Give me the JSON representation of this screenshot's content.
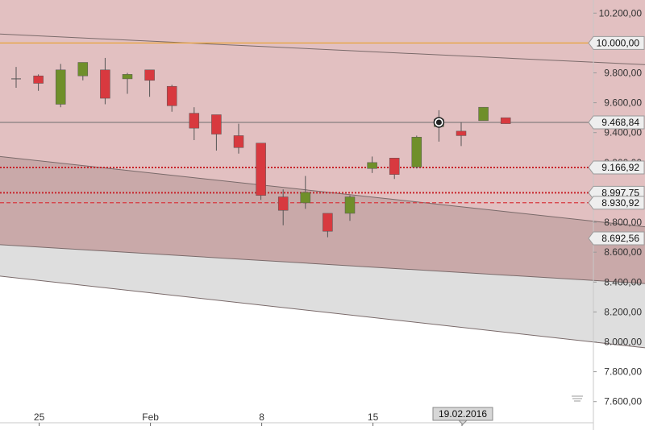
{
  "chart_data": {
    "type": "candlestick",
    "ylim": [
      7550,
      10250
    ],
    "y_ticks": [
      {
        "value": 10200,
        "label": "10.200,00"
      },
      {
        "value": 9800,
        "label": "9.800,00"
      },
      {
        "value": 9600,
        "label": "9.600,00"
      },
      {
        "value": 9400,
        "label": "9.400,00"
      },
      {
        "value": 9200,
        "label": "9.200,00"
      },
      {
        "value": 8800,
        "label": "8.800,00"
      },
      {
        "value": 8600,
        "label": "8.600,00"
      },
      {
        "value": 8400,
        "label": "8.400,00"
      },
      {
        "value": 8200,
        "label": "8.200,00"
      },
      {
        "value": 8000,
        "label": "8.000,00"
      },
      {
        "value": 7800,
        "label": "7.800,00"
      },
      {
        "value": 7600,
        "label": "7.600,00"
      }
    ],
    "x_ticks": [
      {
        "index": 1,
        "label": "25"
      },
      {
        "index": 6,
        "label": "Feb"
      },
      {
        "index": 11,
        "label": "8"
      },
      {
        "index": 16,
        "label": "15"
      },
      {
        "index": 20,
        "label": ""
      }
    ],
    "date_label": "19.02.2016",
    "date_label_index": 20,
    "colors": {
      "up": "#6f8f2a",
      "down": "#d8393f",
      "wick": "#555555",
      "orange": "#e8a33a",
      "red_dotted": "#c8242b",
      "red_dashed": "#d8393f"
    },
    "candles": [
      {
        "o": 9760,
        "h": 9840,
        "l": 9700,
        "c": 9760
      },
      {
        "o": 9780,
        "h": 9790,
        "l": 9680,
        "c": 9730
      },
      {
        "o": 9590,
        "h": 9860,
        "l": 9570,
        "c": 9820
      },
      {
        "o": 9780,
        "h": 9870,
        "l": 9750,
        "c": 9870
      },
      {
        "o": 9820,
        "h": 9900,
        "l": 9590,
        "c": 9630
      },
      {
        "o": 9760,
        "h": 9800,
        "l": 9660,
        "c": 9790
      },
      {
        "o": 9820,
        "h": 9820,
        "l": 9640,
        "c": 9750
      },
      {
        "o": 9710,
        "h": 9720,
        "l": 9540,
        "c": 9580
      },
      {
        "o": 9530,
        "h": 9570,
        "l": 9350,
        "c": 9430
      },
      {
        "o": 9520,
        "h": 9520,
        "l": 9280,
        "c": 9390
      },
      {
        "o": 9380,
        "h": 9460,
        "l": 9260,
        "c": 9300
      },
      {
        "o": 9330,
        "h": 9330,
        "l": 8950,
        "c": 8980
      },
      {
        "o": 8970,
        "h": 9020,
        "l": 8780,
        "c": 8880
      },
      {
        "o": 8930,
        "h": 9110,
        "l": 8890,
        "c": 9000
      },
      {
        "o": 8860,
        "h": 8860,
        "l": 8700,
        "c": 8740
      },
      {
        "o": 8860,
        "h": 8980,
        "l": 8810,
        "c": 8970
      },
      {
        "o": 9160,
        "h": 9240,
        "l": 9130,
        "c": 9200
      },
      {
        "o": 9230,
        "h": 9230,
        "l": 9090,
        "c": 9120
      },
      {
        "o": 9170,
        "h": 9380,
        "l": 9160,
        "c": 9370
      },
      {
        "o": 9440,
        "h": 9550,
        "l": 9340,
        "c": 9490
      },
      {
        "o": 9410,
        "h": 9470,
        "l": 9310,
        "c": 9380
      },
      {
        "o": 9480,
        "h": 9570,
        "l": 9480,
        "c": 9570
      },
      {
        "o": 9500,
        "h": 9500,
        "l": 9460,
        "c": 9460
      }
    ],
    "marker": {
      "index": 19,
      "value": 9468.84
    },
    "levels": [
      {
        "value": 10000,
        "label": "10.000,00",
        "style": "orange"
      },
      {
        "value": 9468.84,
        "label": "9.468,84",
        "style": "gray"
      },
      {
        "value": 9166.92,
        "label": "9.166,92",
        "style": "dotted"
      },
      {
        "value": 8997.75,
        "label": "8.997,75",
        "style": "dotted"
      },
      {
        "value": 8930.92,
        "label": "8.930,92",
        "style": "dashed"
      },
      {
        "value": 8692.56,
        "label": "8.692,56",
        "style": "none"
      }
    ],
    "trendlines": [
      {
        "y_start": 10060,
        "y_end": 9855
      },
      {
        "y_start": 9240,
        "y_end": 8770
      },
      {
        "y_start": 8650,
        "y_end": 8390
      },
      {
        "y_start": 8440,
        "y_end": 7960
      }
    ]
  }
}
